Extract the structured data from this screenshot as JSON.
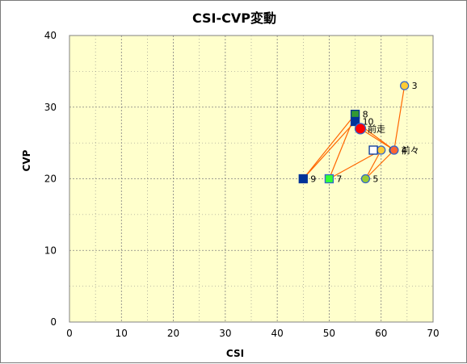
{
  "chart_data": {
    "type": "scatter",
    "title": "CSI-CVP変動",
    "xlabel": "CSI",
    "ylabel": "CVP",
    "xlim": [
      0,
      70
    ],
    "ylim": [
      0,
      40
    ],
    "xticks": [
      0,
      10,
      20,
      30,
      40,
      50,
      60,
      70
    ],
    "yticks": [
      0,
      10,
      20,
      30,
      40
    ],
    "grid": true,
    "colors": {
      "plot_bg": "#ffffcc",
      "grid": "#808080",
      "connector": "#ff6600"
    },
    "line_order": [
      "3",
      "4",
      "5",
      "6",
      "7",
      "8",
      "9",
      "10",
      "前々",
      "前走"
    ],
    "points": [
      {
        "label": "3",
        "x": 64.5,
        "y": 33,
        "shape": "circle",
        "fill": "#ffcc33",
        "stroke": "#3366cc"
      },
      {
        "label": "4",
        "x": 62.5,
        "y": 24,
        "shape": "circle",
        "fill": "#ff6633",
        "stroke": "#3366cc"
      },
      {
        "label": "5",
        "x": 57,
        "y": 20,
        "shape": "circle",
        "fill": "#99cc33",
        "stroke": "#3366cc"
      },
      {
        "label": "6",
        "x": 60,
        "y": 24,
        "shape": "circle",
        "fill": "#ffcc33",
        "stroke": "#3366cc"
      },
      {
        "label": "7",
        "x": 50,
        "y": 20,
        "shape": "square",
        "fill": "#33ff33",
        "stroke": "#3366cc"
      },
      {
        "label": "8",
        "x": 55,
        "y": 29,
        "shape": "square",
        "fill": "#339933",
        "stroke": "#003399"
      },
      {
        "label": "9",
        "x": 45,
        "y": 20,
        "shape": "square",
        "fill": "#003399",
        "stroke": "#003399"
      },
      {
        "label": "10",
        "x": 55,
        "y": 28,
        "shape": "square",
        "fill": "#003399",
        "stroke": "#003399"
      },
      {
        "label": "前々",
        "x": 62.5,
        "y": 24,
        "shape": "circle",
        "fill": "#ff6633",
        "stroke": "#3366cc"
      },
      {
        "label": "前走",
        "x": 56,
        "y": 27,
        "shape": "circle-big",
        "fill": "#ff0000",
        "stroke": "#3366cc"
      },
      {
        "label": "",
        "x": 58.5,
        "y": 24,
        "shape": "square",
        "fill": "#ffffff",
        "stroke": "#003399"
      }
    ]
  }
}
